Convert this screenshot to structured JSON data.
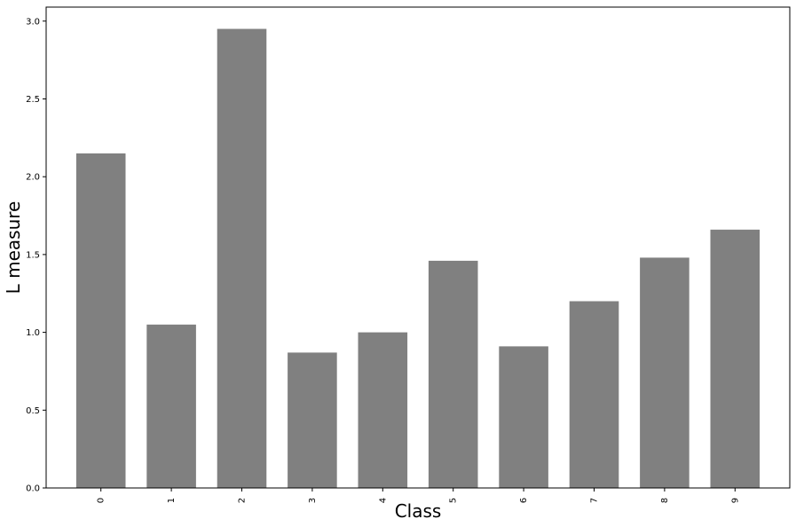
{
  "chart_data": {
    "type": "bar",
    "categories": [
      "0",
      "1",
      "2",
      "3",
      "4",
      "5",
      "6",
      "7",
      "8",
      "9"
    ],
    "values": [
      2.15,
      1.05,
      2.95,
      0.87,
      1.0,
      1.46,
      0.91,
      1.2,
      1.48,
      1.66
    ],
    "title": "",
    "xlabel": "Class",
    "ylabel": "L measure",
    "ylim": [
      0,
      3.09
    ],
    "yticks": [
      0.0,
      0.5,
      1.0,
      1.5,
      2.0,
      2.5,
      3.0
    ],
    "ytick_labels": [
      "0.0",
      "0.5",
      "1.0",
      "1.5",
      "2.0",
      "2.5",
      "3.0"
    ],
    "bar_color": "#808080",
    "grid": false,
    "legend": "none"
  }
}
